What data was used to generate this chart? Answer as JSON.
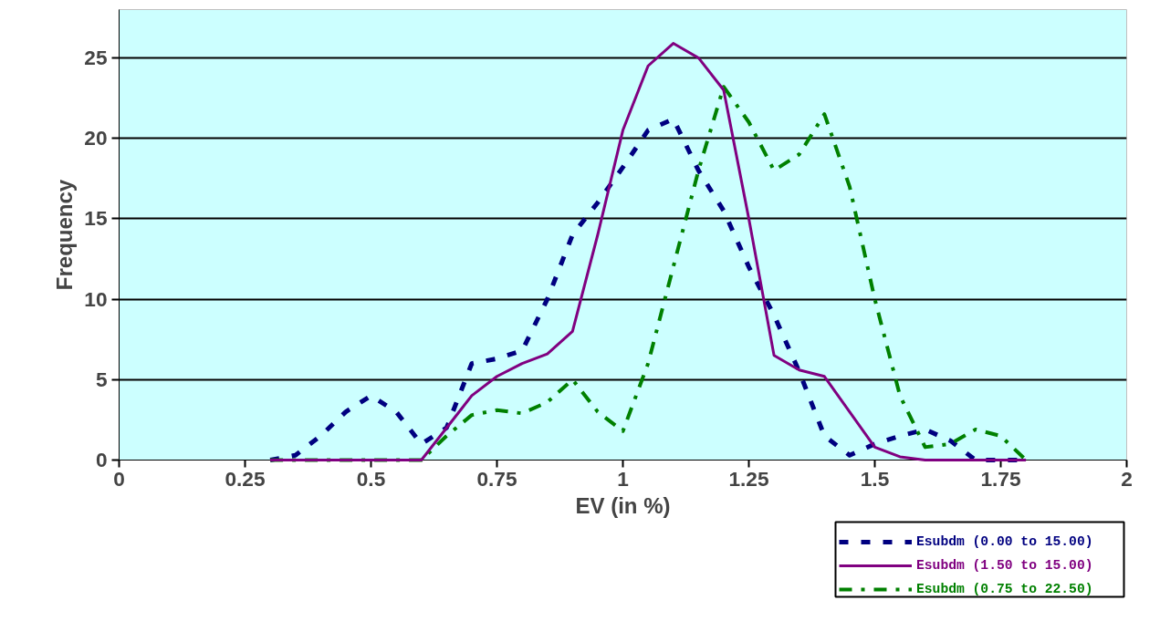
{
  "chart_data": {
    "type": "line",
    "xlabel": "EV (in %)",
    "ylabel": "Frequency",
    "x": [
      0.3,
      0.35,
      0.4,
      0.45,
      0.5,
      0.55,
      0.6,
      0.65,
      0.7,
      0.75,
      0.8,
      0.85,
      0.9,
      0.95,
      1.0,
      1.05,
      1.1,
      1.15,
      1.2,
      1.25,
      1.3,
      1.35,
      1.4,
      1.45,
      1.5,
      1.55,
      1.6,
      1.65,
      1.7,
      1.75,
      1.8
    ],
    "series": [
      {
        "name": "Esubdm (0.00 to 15.00)",
        "color": "#000080",
        "line_style": "dashed",
        "values": [
          0,
          0.3,
          1.5,
          3,
          4,
          3,
          1,
          2,
          6,
          6.3,
          6.8,
          10,
          14,
          16,
          18.2,
          20.5,
          21.2,
          18,
          15.5,
          12,
          9,
          5.5,
          1.5,
          0.3,
          1,
          1.5,
          1.9,
          1.2,
          0,
          0,
          0
        ]
      },
      {
        "name": "Esubdm (1.50 to 15.00)",
        "color": "#800080",
        "line_style": "solid",
        "values": [
          0,
          0,
          0,
          0,
          0,
          0,
          0,
          2,
          4,
          5.2,
          6,
          6.6,
          8,
          14,
          20.5,
          24.5,
          25.9,
          25,
          23,
          15,
          6.5,
          5.6,
          5.2,
          3,
          0.8,
          0.2,
          0,
          0,
          0,
          0,
          0
        ]
      },
      {
        "name": "Esubdm (0.75 to 22.50)",
        "color": "#008000",
        "line_style": "dashdot",
        "values": [
          0,
          0,
          0,
          0,
          0,
          0,
          0,
          1.5,
          2.8,
          3.1,
          2.9,
          3.6,
          5,
          3,
          1.8,
          6,
          12,
          18,
          23.2,
          21,
          18,
          19,
          21.5,
          17,
          10,
          4,
          0.8,
          1,
          1.9,
          1.5,
          0
        ]
      }
    ],
    "xlim": [
      0,
      2
    ],
    "xticks": [
      0,
      0.25,
      0.5,
      0.75,
      1,
      1.25,
      1.5,
      1.75,
      2
    ],
    "ylim": [
      0,
      28
    ],
    "yticks": [
      0,
      5,
      10,
      15,
      20,
      25
    ],
    "grid": "y",
    "legend": "bottom right",
    "marker": "none"
  }
}
